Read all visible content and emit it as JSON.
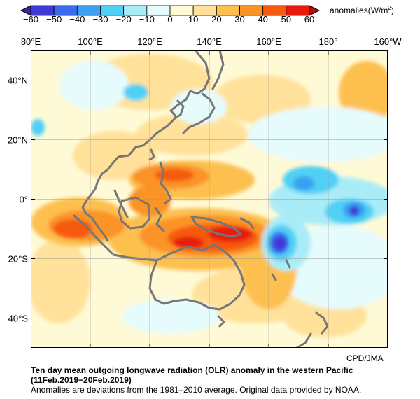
{
  "colorbar": {
    "units": "anomalies(W/m",
    "units_sup": "2",
    "units_close": ")",
    "ticks": [
      "−60",
      "−50",
      "−40",
      "−30",
      "−20",
      "−10",
      "0",
      "10",
      "20",
      "30",
      "40",
      "50",
      "60"
    ],
    "colors": [
      "#3f39d6",
      "#3b6cf0",
      "#3b9ff2",
      "#4fd0f4",
      "#a9ecf8",
      "#e6fbfc",
      "#fffad6",
      "#ffe19a",
      "#fdc04f",
      "#fb9326",
      "#f55a10",
      "#e81a0e"
    ]
  },
  "map": {
    "lon_labels": [
      "80°E",
      "100°E",
      "120°E",
      "140°E",
      "160°E",
      "180°",
      "160°W"
    ],
    "lat_labels": [
      "40°N",
      "20°N",
      "0°",
      "20°S",
      "40°S"
    ]
  },
  "credit": "CPD/JMA",
  "title": "Ten day mean outgoing longwave radiation (OLR) anomaly in the western Pacific",
  "period": "(11Feb.2019−20Feb.2019)",
  "note": "Anomalies are deviations from the 1981–2010 average. Original data provided by NOAA."
}
